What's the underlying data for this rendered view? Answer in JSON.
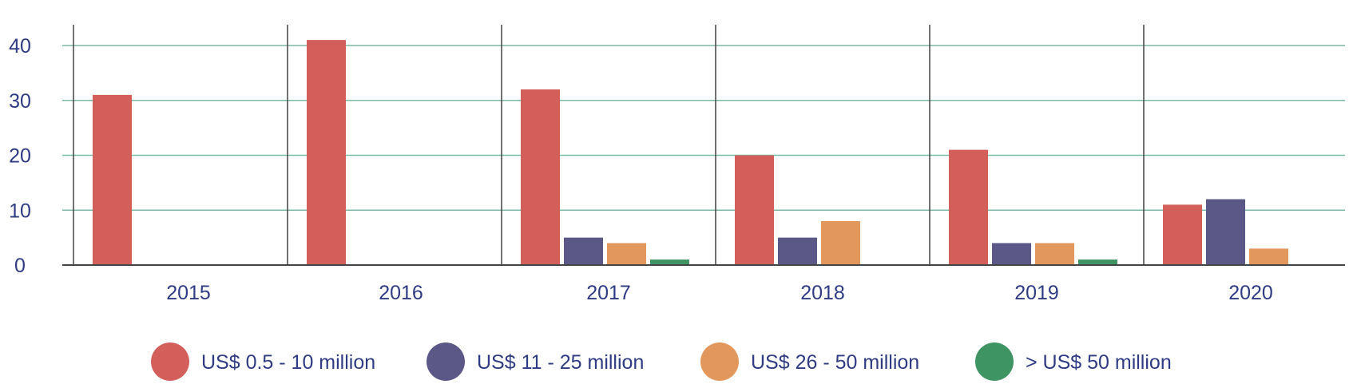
{
  "chart_data": {
    "type": "bar",
    "categories": [
      "2015",
      "2016",
      "2017",
      "2018",
      "2019",
      "2020"
    ],
    "series": [
      {
        "name": "US$ 0.5 - 10 million",
        "color": "#d35f5a",
        "values": [
          31,
          41,
          32,
          20,
          21,
          11
        ]
      },
      {
        "name": "US$ 11 - 25 million",
        "color": "#5b5787",
        "values": [
          0,
          0,
          5,
          5,
          4,
          12
        ]
      },
      {
        "name": "US$ 26 - 50 million",
        "color": "#e2985c",
        "values": [
          0,
          0,
          4,
          8,
          4,
          3
        ]
      },
      {
        "name": "> US$ 50 million",
        "color": "#3f9464",
        "values": [
          0,
          0,
          1,
          0,
          1,
          0
        ]
      }
    ],
    "yticks": [
      0,
      10,
      20,
      30,
      40
    ],
    "ylim": [
      0,
      40
    ],
    "title": "",
    "xlabel": "",
    "ylabel": "",
    "grid": true,
    "legend_position": "bottom",
    "colors": {
      "gridline": "#7ab9a7",
      "axis": "#444444",
      "text": "#2f3b82"
    }
  }
}
